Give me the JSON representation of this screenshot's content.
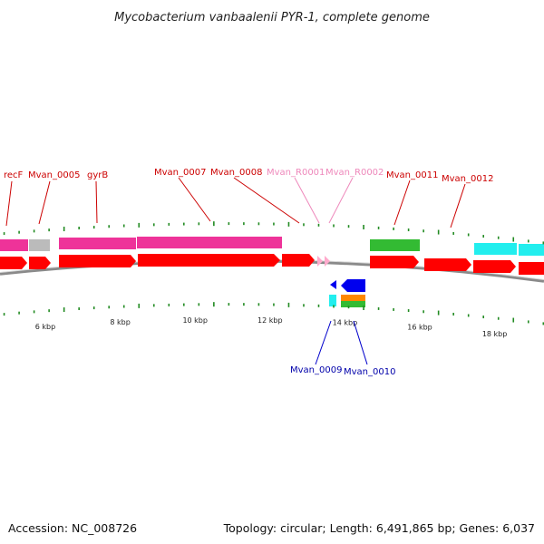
{
  "title": "Mycobacterium vanbaalenii PYR-1, complete genome",
  "footer": {
    "accession": "Accession: NC_008726",
    "summary": "Topology: circular; Length: 6,491,865 bp; Genes: 6,037"
  },
  "colors": {
    "cds": "#ff0000",
    "rna": "#ffaacc",
    "backbone": "#888888",
    "tick": "#228b22",
    "magenta": "#ee3399",
    "gray": "#bbbbbb",
    "green": "#33bb33",
    "cyan": "#22eeee",
    "blue": "#0000ee",
    "orange": "#ff8800",
    "label_red": "#cc0000",
    "label_pink": "#ee88bb",
    "label_blue": "#0000aa"
  },
  "scale": {
    "unit": "kbp",
    "ticks": [
      {
        "kbp": 6,
        "label": "6 kbp"
      },
      {
        "kbp": 8,
        "label": "8 kbp"
      },
      {
        "kbp": 10,
        "label": "10 kbp"
      },
      {
        "kbp": 12,
        "label": "12 kbp"
      },
      {
        "kbp": 14,
        "label": "14 kbp"
      },
      {
        "kbp": 16,
        "label": "16 kbp"
      },
      {
        "kbp": 18,
        "label": "18 kbp"
      }
    ]
  },
  "genes_top": [
    {
      "name": "recF"
    },
    {
      "name": "Mvan_0005"
    },
    {
      "name": "gyrB"
    },
    {
      "name": "Mvan_0007"
    },
    {
      "name": "Mvan_0008"
    },
    {
      "name": "Mvan_R0001"
    },
    {
      "name": "Mvan_R0002"
    },
    {
      "name": "Mvan_0011"
    },
    {
      "name": "Mvan_0012"
    }
  ],
  "genes_bottom": [
    {
      "name": "Mvan_0009"
    },
    {
      "name": "Mvan_0010"
    }
  ]
}
